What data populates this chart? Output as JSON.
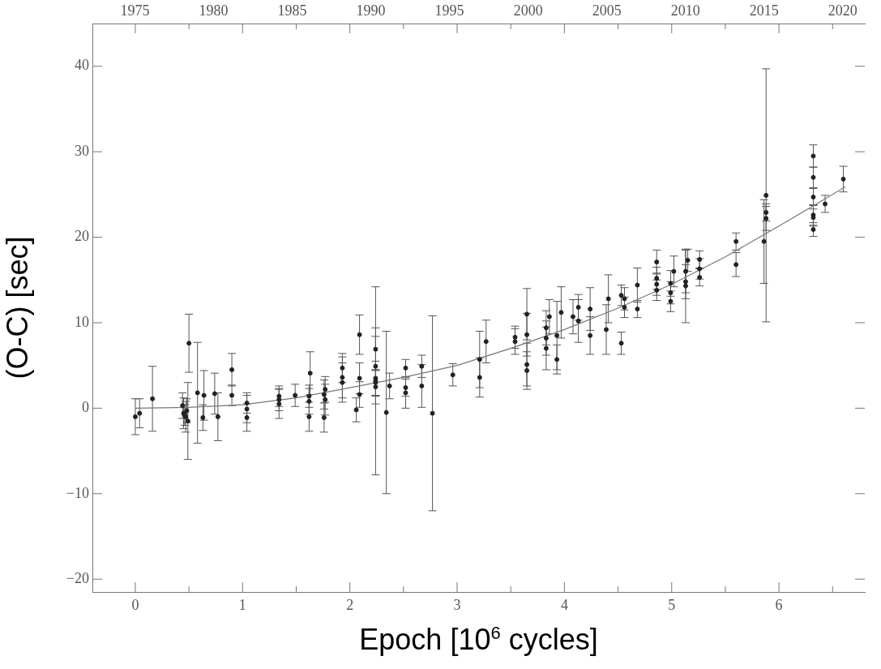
{
  "chart_data": {
    "type": "scatter",
    "xlabel": "Epoch [10$^{6}$ cycles]",
    "ylabel": "(O-C) [sec]",
    "xlim": [
      -0.4,
      6.8
    ],
    "ylim": [
      -21.5,
      45
    ],
    "xticks": [
      0,
      {
        "value": 0.5,
        "label": null
      },
      1,
      {
        "value": 1.5,
        "label": null
      },
      2,
      {
        "value": 2.5,
        "label": null
      },
      3,
      {
        "value": 3.5,
        "label": null
      },
      4,
      {
        "value": 4.5,
        "label": null
      },
      5,
      {
        "value": 5.5,
        "label": null
      },
      6,
      {
        "value": 6.5,
        "label": null
      }
    ],
    "yticks": [
      {
        "value": -20,
        "label": "−20"
      },
      {
        "value": -10,
        "label": "−10"
      },
      0,
      10,
      20,
      30,
      40
    ],
    "x2lim": [
      1972.3,
      2021.4
    ],
    "x2ticks": [
      1975,
      1980,
      1985,
      1990,
      1995,
      2000,
      2005,
      2010,
      2015,
      2020
    ],
    "grid": false,
    "legend": false,
    "series": [
      {
        "type": "scatter",
        "color": "#222222",
        "marker": "circle",
        "x": [
          0.0,
          0.04,
          0.16,
          0.44,
          0.45,
          0.46,
          0.47,
          0.48,
          0.49,
          0.5,
          0.58,
          0.63,
          0.64,
          0.74,
          0.77,
          0.9,
          0.9,
          1.04,
          1.04,
          1.04,
          1.34,
          1.34,
          1.34,
          1.49,
          1.62,
          1.62,
          1.62,
          1.63,
          1.76,
          1.76,
          1.77,
          1.77,
          1.93,
          1.93,
          1.93,
          2.06,
          2.09,
          2.09,
          2.09,
          2.24,
          2.24,
          2.24,
          2.24,
          2.24,
          2.24,
          2.34,
          2.37,
          2.52,
          2.52,
          2.52,
          2.67,
          2.67,
          2.77,
          2.96,
          3.21,
          3.21,
          3.27,
          3.54,
          3.54,
          3.65,
          3.65,
          3.65,
          3.65,
          3.83,
          3.83,
          3.83,
          3.86,
          3.93,
          3.93,
          3.97,
          4.08,
          4.13,
          4.13,
          4.24,
          4.24,
          4.39,
          4.41,
          4.53,
          4.53,
          4.56,
          4.56,
          4.68,
          4.68,
          4.86,
          4.86,
          4.86,
          4.86,
          4.99,
          4.99,
          4.99,
          5.02,
          5.13,
          5.13,
          5.13,
          5.15,
          5.26,
          5.26,
          5.26,
          5.6,
          5.6,
          5.86,
          5.88,
          5.88,
          5.88,
          6.32,
          6.32,
          6.32,
          6.32,
          6.32,
          6.32,
          6.43,
          6.6
        ],
        "values": [
          -1.0,
          -0.6,
          1.1,
          0.3,
          -0.6,
          -0.8,
          -1.0,
          -0.3,
          -1.5,
          7.6,
          1.8,
          -1.1,
          1.5,
          1.7,
          -1.0,
          1.5,
          4.5,
          0.6,
          -0.1,
          -1.1,
          1.4,
          1.0,
          0.5,
          1.5,
          1.4,
          0.8,
          -1.0,
          4.1,
          1.6,
          -1.1,
          2.2,
          1.0,
          3.6,
          3.0,
          4.7,
          -0.2,
          3.5,
          1.6,
          8.6,
          6.9,
          4.9,
          3.2,
          3.5,
          3.0,
          2.5,
          -0.5,
          2.6,
          4.7,
          2.4,
          1.8,
          4.9,
          2.6,
          -0.6,
          3.9,
          5.7,
          3.6,
          7.8,
          8.3,
          7.8,
          8.6,
          5.1,
          4.4,
          11.0,
          9.4,
          8.2,
          7.0,
          10.7,
          5.7,
          8.5,
          11.2,
          10.7,
          10.2,
          11.8,
          11.6,
          8.5,
          9.2,
          12.8,
          13.2,
          7.6,
          11.8,
          12.8,
          11.6,
          14.4,
          17.1,
          15.2,
          14.5,
          13.8,
          14.6,
          12.5,
          13.5,
          16.0,
          16.0,
          14.8,
          14.3,
          17.3,
          17.4,
          16.3,
          15.3,
          19.5,
          16.8,
          19.5,
          24.9,
          22.9,
          22.2,
          29.5,
          27.0,
          24.7,
          22.6,
          22.3,
          20.9,
          23.9,
          26.8
        ],
        "errors": [
          2.1,
          1.7,
          3.8,
          1.5,
          1.8,
          1.2,
          1.8,
          1.4,
          4.5,
          3.4,
          5.9,
          1.5,
          2.9,
          2.4,
          2.8,
          1.2,
          1.9,
          1.2,
          1.6,
          1.6,
          1.2,
          1.3,
          1.7,
          1.3,
          1.3,
          1.5,
          1.7,
          2.5,
          1.7,
          1.7,
          1.5,
          1.8,
          2.4,
          2.3,
          1.7,
          1.4,
          1.8,
          1.5,
          2.3,
          2.5,
          3.5,
          11.0,
          2.0,
          1.5,
          2.0,
          9.5,
          1.5,
          1.0,
          1.0,
          1.8,
          1.3,
          2.5,
          11.4,
          1.3,
          3.3,
          2.3,
          2.5,
          1.3,
          1.5,
          2.5,
          2.5,
          2.2,
          3.0,
          2.0,
          2.0,
          2.5,
          2.0,
          1.7,
          4.0,
          3.0,
          2.0,
          2.5,
          1.5,
          2.5,
          2.2,
          2.9,
          2.8,
          1.2,
          1.3,
          1.2,
          1.3,
          1.0,
          2.0,
          1.4,
          1.3,
          1.3,
          1.2,
          1.5,
          1.2,
          1.3,
          1.8,
          2.5,
          2.0,
          4.3,
          1.3,
          1.0,
          1.2,
          1.0,
          1.0,
          1.4,
          4.9,
          14.8,
          1.0,
          1.4,
          1.3,
          1.2,
          1.0,
          1.2,
          1.0,
          0.8,
          1.0,
          1.5
        ]
      },
      {
        "type": "line",
        "color": "#777777",
        "marker": "none",
        "line_style": "solid",
        "x": [
          0,
          0.5,
          1,
          1.5,
          2,
          2.5,
          3,
          3.5,
          4,
          4.5,
          5,
          5.5,
          6,
          6.62
        ],
        "values": [
          0,
          0.1,
          0.4,
          1.2,
          2.4,
          3.6,
          5.0,
          7.0,
          9.2,
          11.7,
          14.5,
          17.7,
          21.3,
          25.9
        ]
      }
    ]
  }
}
